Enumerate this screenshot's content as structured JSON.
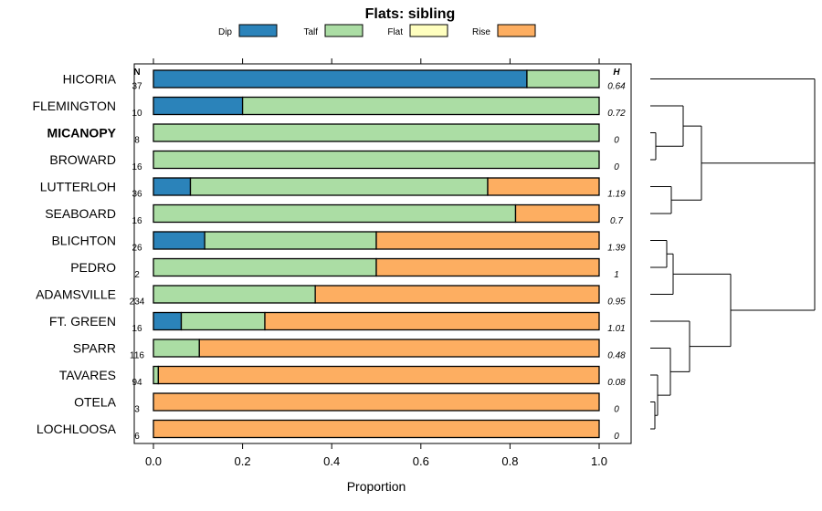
{
  "chart_data": {
    "type": "bar",
    "stacked": true,
    "orientation": "horizontal",
    "title": "Flats: sibling",
    "xlabel": "Proportion",
    "xlim": [
      0,
      1
    ],
    "xticks": [
      "0.0",
      "0.2",
      "0.4",
      "0.6",
      "0.8",
      "1.0"
    ],
    "n_header": "N",
    "h_header": "H",
    "legend": [
      {
        "name": "Dip",
        "color": "#2B83BA"
      },
      {
        "name": "Talf",
        "color": "#ABDDA4"
      },
      {
        "name": "Flat",
        "color": "#FFFFBF"
      },
      {
        "name": "Rise",
        "color": "#FDAE61"
      }
    ],
    "categories": [
      "HICORIA",
      "FLEMINGTON",
      "MICANOPY",
      "BROWARD",
      "LUTTERLOH",
      "SEABOARD",
      "BLICHTON",
      "PEDRO",
      "ADAMSVILLE",
      "FT. GREEN",
      "SPARR",
      "TAVARES",
      "OTELA",
      "LOCHLOOSA"
    ],
    "highlighted": "MICANOPY",
    "n": [
      "37",
      "10",
      "8",
      "16",
      "36",
      "16",
      "26",
      "2",
      "234",
      "16",
      "116",
      "94",
      "3",
      "6"
    ],
    "h": [
      "0.64",
      "0.72",
      "0",
      "0",
      "1.19",
      "0.7",
      "1.39",
      "1",
      "0.95",
      "1.01",
      "0.48",
      "0.08",
      "0",
      "0"
    ],
    "series": [
      {
        "name": "Dip",
        "values": [
          0.838,
          0.2,
          0,
          0,
          0.083,
          0,
          0.115,
          0,
          0,
          0.0625,
          0,
          0,
          0,
          0
        ]
      },
      {
        "name": "Talf",
        "values": [
          0.162,
          0.8,
          1,
          1,
          0.667,
          0.8125,
          0.385,
          0.5,
          0.363,
          0.1875,
          0.103,
          0.011,
          0,
          0
        ]
      },
      {
        "name": "Flat",
        "values": [
          0,
          0,
          0,
          0,
          0,
          0,
          0,
          0,
          0,
          0,
          0,
          0,
          0,
          0
        ]
      },
      {
        "name": "Rise",
        "values": [
          0,
          0,
          0,
          0,
          0.25,
          0.1875,
          0.5,
          0.5,
          0.637,
          0.75,
          0.897,
          0.989,
          1,
          1
        ]
      }
    ]
  }
}
